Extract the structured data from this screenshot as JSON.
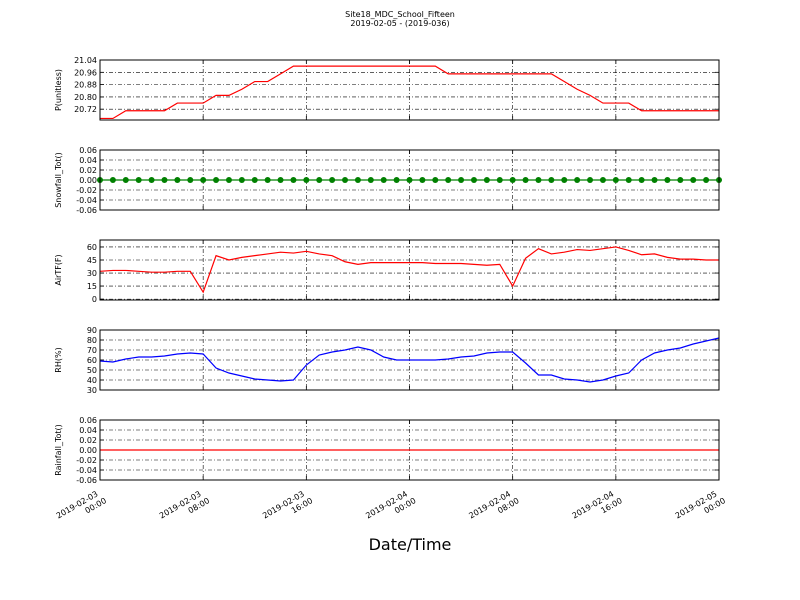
{
  "chart_data": [
    {
      "type": "line",
      "title": "Site18_MDC_School_Fifteen",
      "subtitle": "2019-02-05 - (2019-036)",
      "ylabel": "P(unitless)",
      "x": [
        "2019-02-03 00:00",
        "2019-02-03 01:00",
        "2019-02-03 02:00",
        "2019-02-03 03:00",
        "2019-02-03 04:00",
        "2019-02-03 05:00",
        "2019-02-03 06:00",
        "2019-02-03 07:00",
        "2019-02-03 08:00",
        "2019-02-03 09:00",
        "2019-02-03 10:00",
        "2019-02-03 11:00",
        "2019-02-03 12:00",
        "2019-02-03 13:00",
        "2019-02-03 14:00",
        "2019-02-03 15:00",
        "2019-02-03 16:00",
        "2019-02-03 17:00",
        "2019-02-03 18:00",
        "2019-02-03 19:00",
        "2019-02-03 20:00",
        "2019-02-03 21:00",
        "2019-02-03 22:00",
        "2019-02-03 23:00",
        "2019-02-04 00:00",
        "2019-02-04 01:00",
        "2019-02-04 02:00",
        "2019-02-04 03:00",
        "2019-02-04 04:00",
        "2019-02-04 05:00",
        "2019-02-04 06:00",
        "2019-02-04 07:00",
        "2019-02-04 08:00",
        "2019-02-04 09:00",
        "2019-02-04 10:00",
        "2019-02-04 11:00",
        "2019-02-04 12:00",
        "2019-02-04 13:00",
        "2019-02-04 14:00",
        "2019-02-04 15:00",
        "2019-02-04 16:00",
        "2019-02-04 17:00",
        "2019-02-04 18:00",
        "2019-02-04 19:00",
        "2019-02-04 20:00",
        "2019-02-04 21:00",
        "2019-02-04 22:00",
        "2019-02-04 23:00",
        "2019-02-05 00:00"
      ],
      "series": [
        {
          "name": "P",
          "color": "#ff0000",
          "values": [
            20.66,
            20.66,
            20.71,
            20.71,
            20.71,
            20.71,
            20.76,
            20.76,
            20.76,
            20.81,
            20.81,
            20.85,
            20.9,
            20.9,
            20.95,
            21.0,
            21.0,
            21.0,
            21.0,
            21.0,
            21.0,
            21.0,
            21.0,
            21.0,
            21.0,
            21.0,
            21.0,
            20.95,
            20.95,
            20.95,
            20.95,
            20.95,
            20.95,
            20.95,
            20.95,
            20.95,
            20.9,
            20.85,
            20.81,
            20.76,
            20.76,
            20.76,
            20.71,
            20.71,
            20.71,
            20.71,
            20.71,
            20.71,
            20.71
          ]
        }
      ],
      "xlim": [
        "2019-02-03 00:00",
        "2019-02-05 00:00"
      ],
      "xticks": [
        "2019-02-03 00:00",
        "2019-02-03 08:00",
        "2019-02-03 16:00",
        "2019-02-04 00:00",
        "2019-02-04 08:00",
        "2019-02-04 16:00",
        "2019-02-05 00:00"
      ],
      "ylim": [
        20.65,
        21.04
      ],
      "yticks": [
        20.72,
        {
          "value": 20.8,
          "label": "20.80"
        },
        20.88,
        20.96,
        21.04
      ],
      "grid": true
    },
    {
      "type": "line",
      "ylabel": "Snowfall_Tot()",
      "x": [
        "2019-02-03 00:00",
        "2019-02-03 01:00",
        "2019-02-03 02:00",
        "2019-02-03 03:00",
        "2019-02-03 04:00",
        "2019-02-03 05:00",
        "2019-02-03 06:00",
        "2019-02-03 07:00",
        "2019-02-03 08:00",
        "2019-02-03 09:00",
        "2019-02-03 10:00",
        "2019-02-03 11:00",
        "2019-02-03 12:00",
        "2019-02-03 13:00",
        "2019-02-03 14:00",
        "2019-02-03 15:00",
        "2019-02-03 16:00",
        "2019-02-03 17:00",
        "2019-02-03 18:00",
        "2019-02-03 19:00",
        "2019-02-03 20:00",
        "2019-02-03 21:00",
        "2019-02-03 22:00",
        "2019-02-03 23:00",
        "2019-02-04 00:00",
        "2019-02-04 01:00",
        "2019-02-04 02:00",
        "2019-02-04 03:00",
        "2019-02-04 04:00",
        "2019-02-04 05:00",
        "2019-02-04 06:00",
        "2019-02-04 07:00",
        "2019-02-04 08:00",
        "2019-02-04 09:00",
        "2019-02-04 10:00",
        "2019-02-04 11:00",
        "2019-02-04 12:00",
        "2019-02-04 13:00",
        "2019-02-04 14:00",
        "2019-02-04 15:00",
        "2019-02-04 16:00",
        "2019-02-04 17:00",
        "2019-02-04 18:00",
        "2019-02-04 19:00",
        "2019-02-04 20:00",
        "2019-02-04 21:00",
        "2019-02-04 22:00",
        "2019-02-04 23:00",
        "2019-02-05 00:00"
      ],
      "series": [
        {
          "name": "Snowfall_Tot",
          "color": "#008000",
          "marker": true,
          "values": [
            0,
            0,
            0,
            0,
            0,
            0,
            0,
            0,
            0,
            0,
            0,
            0,
            0,
            0,
            0,
            0,
            0,
            0,
            0,
            0,
            0,
            0,
            0,
            0,
            0,
            0,
            0,
            0,
            0,
            0,
            0,
            0,
            0,
            0,
            0,
            0,
            0,
            0,
            0,
            0,
            0,
            0,
            0,
            0,
            0,
            0,
            0,
            0,
            0
          ]
        }
      ],
      "xlim": [
        "2019-02-03 00:00",
        "2019-02-05 00:00"
      ],
      "xticks": [
        "2019-02-03 00:00",
        "2019-02-03 08:00",
        "2019-02-03 16:00",
        "2019-02-04 00:00",
        "2019-02-04 08:00",
        "2019-02-04 16:00",
        "2019-02-05 00:00"
      ],
      "ylim": [
        -0.06,
        0.06
      ],
      "yticks": [
        -0.06,
        -0.04,
        -0.02,
        {
          "value": 0,
          "label": "0.00"
        },
        0.02,
        0.04,
        0.06
      ],
      "grid": true
    },
    {
      "type": "line",
      "ylabel": "AirTF(F)",
      "x": [
        "2019-02-03 00:00",
        "2019-02-03 01:00",
        "2019-02-03 02:00",
        "2019-02-03 03:00",
        "2019-02-03 04:00",
        "2019-02-03 05:00",
        "2019-02-03 06:00",
        "2019-02-03 07:00",
        "2019-02-03 08:00",
        "2019-02-03 09:00",
        "2019-02-03 10:00",
        "2019-02-03 11:00",
        "2019-02-03 12:00",
        "2019-02-03 13:00",
        "2019-02-03 14:00",
        "2019-02-03 15:00",
        "2019-02-03 16:00",
        "2019-02-03 17:00",
        "2019-02-03 18:00",
        "2019-02-03 19:00",
        "2019-02-03 20:00",
        "2019-02-03 21:00",
        "2019-02-03 22:00",
        "2019-02-03 23:00",
        "2019-02-04 00:00",
        "2019-02-04 01:00",
        "2019-02-04 02:00",
        "2019-02-04 03:00",
        "2019-02-04 04:00",
        "2019-02-04 05:00",
        "2019-02-04 06:00",
        "2019-02-04 07:00",
        "2019-02-04 08:00",
        "2019-02-04 09:00",
        "2019-02-04 10:00",
        "2019-02-04 11:00",
        "2019-02-04 12:00",
        "2019-02-04 13:00",
        "2019-02-04 14:00",
        "2019-02-04 15:00",
        "2019-02-04 16:00",
        "2019-02-04 17:00",
        "2019-02-04 18:00",
        "2019-02-04 19:00",
        "2019-02-04 20:00",
        "2019-02-04 21:00",
        "2019-02-04 22:00",
        "2019-02-04 23:00",
        "2019-02-05 00:00"
      ],
      "series": [
        {
          "name": "AirTF",
          "color": "#ff0000",
          "values": [
            32,
            33,
            33,
            32,
            31,
            31,
            32,
            32,
            8,
            50,
            45,
            48,
            50,
            52,
            54,
            53,
            55,
            52,
            50,
            43,
            40,
            42,
            42,
            42,
            42,
            42,
            41,
            41,
            41,
            40,
            39,
            40,
            15,
            47,
            58,
            52,
            54,
            57,
            56,
            58,
            60,
            56,
            51,
            52,
            48,
            46,
            46,
            45,
            45
          ]
        }
      ],
      "xlim": [
        "2019-02-03 00:00",
        "2019-02-05 00:00"
      ],
      "xticks": [
        "2019-02-03 00:00",
        "2019-02-03 08:00",
        "2019-02-03 16:00",
        "2019-02-04 00:00",
        "2019-02-04 08:00",
        "2019-02-04 16:00",
        "2019-02-05 00:00"
      ],
      "ylim": [
        -1,
        68
      ],
      "yticks": [
        0,
        15,
        30,
        45,
        60
      ],
      "grid": true
    },
    {
      "type": "line",
      "ylabel": "RH(%)",
      "x": [
        "2019-02-03 00:00",
        "2019-02-03 01:00",
        "2019-02-03 02:00",
        "2019-02-03 03:00",
        "2019-02-03 04:00",
        "2019-02-03 05:00",
        "2019-02-03 06:00",
        "2019-02-03 07:00",
        "2019-02-03 08:00",
        "2019-02-03 09:00",
        "2019-02-03 10:00",
        "2019-02-03 11:00",
        "2019-02-03 12:00",
        "2019-02-03 13:00",
        "2019-02-03 14:00",
        "2019-02-03 15:00",
        "2019-02-03 16:00",
        "2019-02-03 17:00",
        "2019-02-03 18:00",
        "2019-02-03 19:00",
        "2019-02-03 20:00",
        "2019-02-03 21:00",
        "2019-02-03 22:00",
        "2019-02-03 23:00",
        "2019-02-04 00:00",
        "2019-02-04 01:00",
        "2019-02-04 02:00",
        "2019-02-04 03:00",
        "2019-02-04 04:00",
        "2019-02-04 05:00",
        "2019-02-04 06:00",
        "2019-02-04 07:00",
        "2019-02-04 08:00",
        "2019-02-04 09:00",
        "2019-02-04 10:00",
        "2019-02-04 11:00",
        "2019-02-04 12:00",
        "2019-02-04 13:00",
        "2019-02-04 14:00",
        "2019-02-04 15:00",
        "2019-02-04 16:00",
        "2019-02-04 17:00",
        "2019-02-04 18:00",
        "2019-02-04 19:00",
        "2019-02-04 20:00",
        "2019-02-04 21:00",
        "2019-02-04 22:00",
        "2019-02-04 23:00",
        "2019-02-05 00:00"
      ],
      "series": [
        {
          "name": "RH",
          "color": "#0000ff",
          "values": [
            59,
            58,
            61,
            63,
            63,
            64,
            66,
            67,
            66,
            52,
            47,
            44,
            41,
            40,
            39,
            40,
            55,
            65,
            68,
            70,
            73,
            70,
            63,
            60,
            60,
            60,
            60,
            61,
            63,
            64,
            67,
            68,
            68,
            57,
            45,
            45,
            41,
            40,
            38,
            40,
            44,
            47,
            60,
            67,
            70,
            72,
            76,
            79,
            82
          ]
        }
      ],
      "xlim": [
        "2019-02-03 00:00",
        "2019-02-05 00:00"
      ],
      "xticks": [
        "2019-02-03 00:00",
        "2019-02-03 08:00",
        "2019-02-03 16:00",
        "2019-02-04 00:00",
        "2019-02-04 08:00",
        "2019-02-04 16:00",
        "2019-02-05 00:00"
      ],
      "ylim": [
        30,
        90
      ],
      "yticks": [
        30,
        40,
        50,
        60,
        70,
        80,
        90
      ],
      "grid": true
    },
    {
      "type": "line",
      "ylabel": "Rainfall_Tot()",
      "xlabel": "Date/Time",
      "x": [
        "2019-02-03 00:00",
        "2019-02-03 01:00",
        "2019-02-03 02:00",
        "2019-02-03 03:00",
        "2019-02-03 04:00",
        "2019-02-03 05:00",
        "2019-02-03 06:00",
        "2019-02-03 07:00",
        "2019-02-03 08:00",
        "2019-02-03 09:00",
        "2019-02-03 10:00",
        "2019-02-03 11:00",
        "2019-02-03 12:00",
        "2019-02-03 13:00",
        "2019-02-03 14:00",
        "2019-02-03 15:00",
        "2019-02-03 16:00",
        "2019-02-03 17:00",
        "2019-02-03 18:00",
        "2019-02-03 19:00",
        "2019-02-03 20:00",
        "2019-02-03 21:00",
        "2019-02-03 22:00",
        "2019-02-03 23:00",
        "2019-02-04 00:00",
        "2019-02-04 01:00",
        "2019-02-04 02:00",
        "2019-02-04 03:00",
        "2019-02-04 04:00",
        "2019-02-04 05:00",
        "2019-02-04 06:00",
        "2019-02-04 07:00",
        "2019-02-04 08:00",
        "2019-02-04 09:00",
        "2019-02-04 10:00",
        "2019-02-04 11:00",
        "2019-02-04 12:00",
        "2019-02-04 13:00",
        "2019-02-04 14:00",
        "2019-02-04 15:00",
        "2019-02-04 16:00",
        "2019-02-04 17:00",
        "2019-02-04 18:00",
        "2019-02-04 19:00",
        "2019-02-04 20:00",
        "2019-02-04 21:00",
        "2019-02-04 22:00",
        "2019-02-04 23:00",
        "2019-02-05 00:00"
      ],
      "series": [
        {
          "name": "Rainfall_Tot",
          "color": "#ff0000",
          "values": [
            0,
            0,
            0,
            0,
            0,
            0,
            0,
            0,
            0,
            0,
            0,
            0,
            0,
            0,
            0,
            0,
            0,
            0,
            0,
            0,
            0,
            0,
            0,
            0,
            0,
            0,
            0,
            0,
            0,
            0,
            0,
            0,
            0,
            0,
            0,
            0,
            0,
            0,
            0,
            0,
            0,
            0,
            0,
            0,
            0,
            0,
            0,
            0,
            0
          ]
        }
      ],
      "xlim": [
        "2019-02-03 00:00",
        "2019-02-05 00:00"
      ],
      "xticks": [
        "2019-02-03 00:00",
        "2019-02-03 08:00",
        "2019-02-03 16:00",
        "2019-02-04 00:00",
        "2019-02-04 08:00",
        "2019-02-04 16:00",
        "2019-02-05 00:00"
      ],
      "ylim": [
        -0.06,
        0.06
      ],
      "yticks": [
        -0.06,
        -0.04,
        -0.02,
        {
          "value": 0,
          "label": "0.00"
        },
        0.02,
        0.04,
        0.06
      ],
      "grid": true,
      "xtick_labels": true
    }
  ]
}
